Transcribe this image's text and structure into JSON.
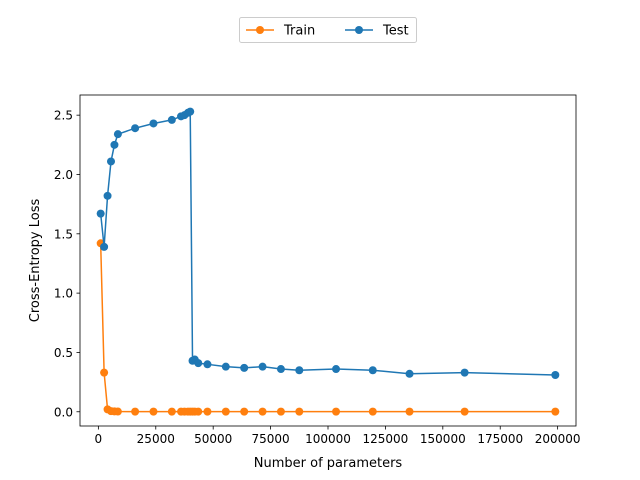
{
  "chart_data": {
    "type": "line",
    "title": "",
    "xlabel": "Number of parameters",
    "ylabel": "Cross-Entropy Loss",
    "xlim": [
      -8000,
      208000
    ],
    "ylim": [
      -0.12,
      2.67
    ],
    "xticks": [
      0,
      25000,
      50000,
      75000,
      100000,
      125000,
      150000,
      175000,
      200000
    ],
    "yticks": [
      0.0,
      0.5,
      1.0,
      1.5,
      2.0,
      2.5
    ],
    "xtick_labels": [
      "0",
      "25000",
      "50000",
      "75000",
      "100000",
      "125000",
      "150000",
      "175000",
      "200000"
    ],
    "ytick_labels": [
      "0.0",
      "0.5",
      "1.0",
      "1.5",
      "2.0",
      "2.5"
    ],
    "grid": false,
    "legend": "top-center",
    "series": [
      {
        "name": "Train",
        "color": "#ff7f0e",
        "marker": "circle",
        "x": [
          1000,
          2500,
          4000,
          5500,
          7000,
          8500,
          16000,
          24000,
          32000,
          36000,
          37500,
          39000,
          40000,
          41000,
          42000,
          43500,
          47500,
          55500,
          63500,
          71500,
          79500,
          87500,
          103500,
          119500,
          135500,
          159500,
          199000
        ],
        "y": [
          1.42,
          0.33,
          0.02,
          0.005,
          0.003,
          0.002,
          0.001,
          0.001,
          0.001,
          0.001,
          0.001,
          0.001,
          0.001,
          0.001,
          0.001,
          0.001,
          0.001,
          0.001,
          0.001,
          0.001,
          0.001,
          0.001,
          0.001,
          0.001,
          0.001,
          0.001,
          0.001
        ]
      },
      {
        "name": "Test",
        "color": "#1f77b4",
        "marker": "circle",
        "x": [
          1000,
          2500,
          4000,
          5500,
          7000,
          8500,
          16000,
          24000,
          32000,
          36000,
          37500,
          39000,
          40000,
          41000,
          42000,
          43500,
          47500,
          55500,
          63500,
          71500,
          79500,
          87500,
          103500,
          119500,
          135500,
          159500,
          199000
        ],
        "y": [
          1.67,
          1.39,
          1.82,
          2.11,
          2.25,
          2.34,
          2.39,
          2.43,
          2.46,
          2.49,
          2.5,
          2.52,
          2.53,
          0.43,
          0.44,
          0.41,
          0.4,
          0.38,
          0.37,
          0.38,
          0.36,
          0.35,
          0.36,
          0.35,
          0.32,
          0.33,
          0.31
        ]
      }
    ]
  }
}
